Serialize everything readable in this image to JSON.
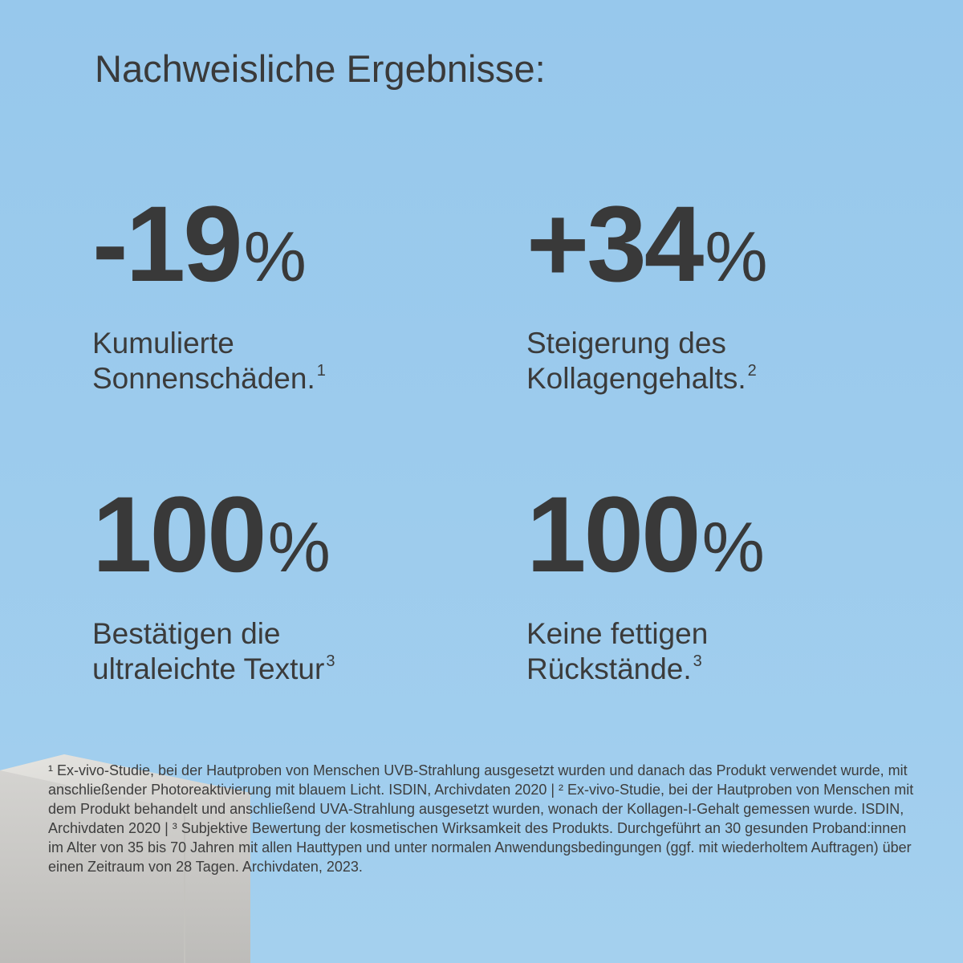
{
  "heading": "Nachweisliche Ergebnisse:",
  "stats": [
    {
      "value": "-19",
      "unit": "%",
      "label_line1": "Kumulierte",
      "label_line2": "Sonnenschäden.",
      "footnote": "1"
    },
    {
      "value": "+34",
      "unit": "%",
      "label_line1": "Steigerung des",
      "label_line2": "Kollagengehalts.",
      "footnote": "2"
    },
    {
      "value": "100",
      "unit": "%",
      "label_line1": "Bestätigen die",
      "label_line2": "ultraleichte Textur",
      "footnote": "3"
    },
    {
      "value": "100",
      "unit": "%",
      "label_line1": "Keine fettigen",
      "label_line2": "Rückstände.",
      "footnote": "3"
    }
  ],
  "footnotes_text": "¹ Ex-vivo-Studie, bei der Hautproben von Menschen UVB-Strahlung ausgesetzt wurden und danach das Produkt verwendet wurde, mit anschließender Photoreaktivierung mit blauem Licht. ISDIN, Archivdaten 2020 | ² Ex-vivo-Studie, bei der Hautproben von Menschen mit dem Produkt behandelt und anschließend UVA-Strahlung ausgesetzt wurden, wonach der Kollagen-I-Gehalt gemessen wurde. ISDIN, Archivdaten 2020 | ³ Subjektive Bewertung der kosmetischen Wirksamkeit des Produkts. Durchgeführt an 30 gesunden Proband:innen im Alter von 35 bis 70 Jahren mit allen Hauttypen und unter normalen Anwendungsbedingungen (ggf. mit wiederholtem Auftragen) über einen Zeitraum von 28 Tagen. Archivdaten, 2023.",
  "colors": {
    "background": "#9ccbed",
    "text": "#3a3a3a",
    "wall": "#d9d8d4"
  }
}
